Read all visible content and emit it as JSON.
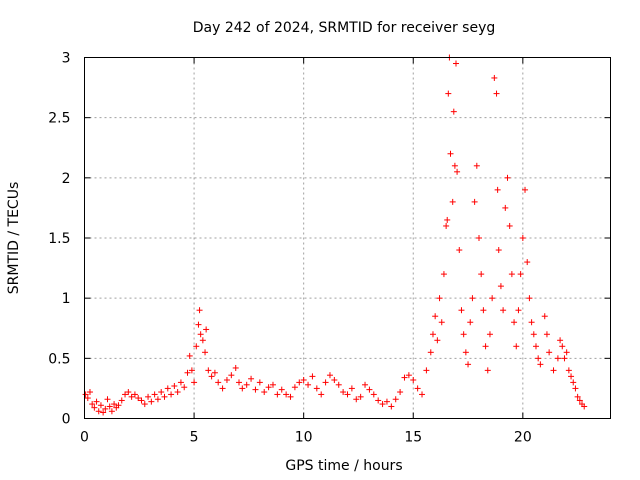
{
  "chart_data": {
    "type": "scatter",
    "title": "Day 242 of 2024, SRMTID for receiver seyg",
    "xlabel": "GPS time / hours",
    "ylabel": "SRMTID / TECUs",
    "xlim": [
      0,
      24
    ],
    "ylim": [
      0,
      3
    ],
    "xticks": [
      0,
      5,
      10,
      15,
      20
    ],
    "xtick_labels": [
      "0",
      "5",
      "10",
      "15",
      "20"
    ],
    "yticks": [
      0,
      0.5,
      1,
      1.5,
      2,
      2.5,
      3
    ],
    "ytick_labels": [
      "0",
      "0.5",
      "1",
      "1.5",
      "2",
      "2.5",
      "3"
    ],
    "grid": true,
    "marker": "+",
    "series": [
      {
        "name": "SRMTID",
        "color": "#ff0000",
        "points": [
          [
            0.05,
            0.2
          ],
          [
            0.15,
            0.17
          ],
          [
            0.25,
            0.22
          ],
          [
            0.35,
            0.12
          ],
          [
            0.45,
            0.09
          ],
          [
            0.55,
            0.14
          ],
          [
            0.65,
            0.06
          ],
          [
            0.75,
            0.11
          ],
          [
            0.85,
            0.05
          ],
          [
            0.95,
            0.08
          ],
          [
            1.05,
            0.16
          ],
          [
            1.15,
            0.1
          ],
          [
            1.25,
            0.06
          ],
          [
            1.35,
            0.12
          ],
          [
            1.45,
            0.09
          ],
          [
            1.55,
            0.11
          ],
          [
            1.7,
            0.15
          ],
          [
            1.85,
            0.2
          ],
          [
            2.0,
            0.22
          ],
          [
            2.15,
            0.18
          ],
          [
            2.3,
            0.2
          ],
          [
            2.45,
            0.17
          ],
          [
            2.6,
            0.15
          ],
          [
            2.75,
            0.12
          ],
          [
            2.9,
            0.18
          ],
          [
            3.05,
            0.14
          ],
          [
            3.2,
            0.2
          ],
          [
            3.35,
            0.16
          ],
          [
            3.5,
            0.22
          ],
          [
            3.65,
            0.18
          ],
          [
            3.8,
            0.25
          ],
          [
            3.95,
            0.2
          ],
          [
            4.1,
            0.27
          ],
          [
            4.25,
            0.22
          ],
          [
            4.4,
            0.3
          ],
          [
            4.55,
            0.26
          ],
          [
            4.7,
            0.38
          ],
          [
            4.8,
            0.52
          ],
          [
            4.9,
            0.4
          ],
          [
            5.0,
            0.3
          ],
          [
            5.1,
            0.6
          ],
          [
            5.2,
            0.78
          ],
          [
            5.25,
            0.9
          ],
          [
            5.3,
            0.7
          ],
          [
            5.4,
            0.65
          ],
          [
            5.5,
            0.55
          ],
          [
            5.55,
            0.74
          ],
          [
            5.65,
            0.4
          ],
          [
            5.8,
            0.35
          ],
          [
            5.95,
            0.38
          ],
          [
            6.1,
            0.3
          ],
          [
            6.3,
            0.25
          ],
          [
            6.5,
            0.32
          ],
          [
            6.7,
            0.36
          ],
          [
            6.9,
            0.42
          ],
          [
            7.05,
            0.3
          ],
          [
            7.2,
            0.25
          ],
          [
            7.4,
            0.28
          ],
          [
            7.6,
            0.33
          ],
          [
            7.8,
            0.24
          ],
          [
            8.0,
            0.3
          ],
          [
            8.2,
            0.22
          ],
          [
            8.4,
            0.26
          ],
          [
            8.6,
            0.28
          ],
          [
            8.8,
            0.2
          ],
          [
            9.0,
            0.24
          ],
          [
            9.2,
            0.2
          ],
          [
            9.4,
            0.18
          ],
          [
            9.6,
            0.26
          ],
          [
            9.8,
            0.3
          ],
          [
            10.0,
            0.32
          ],
          [
            10.2,
            0.28
          ],
          [
            10.4,
            0.35
          ],
          [
            10.6,
            0.25
          ],
          [
            10.8,
            0.2
          ],
          [
            11.0,
            0.3
          ],
          [
            11.2,
            0.36
          ],
          [
            11.4,
            0.32
          ],
          [
            11.6,
            0.28
          ],
          [
            11.8,
            0.22
          ],
          [
            12.0,
            0.2
          ],
          [
            12.2,
            0.25
          ],
          [
            12.4,
            0.16
          ],
          [
            12.6,
            0.18
          ],
          [
            12.8,
            0.28
          ],
          [
            13.0,
            0.24
          ],
          [
            13.2,
            0.2
          ],
          [
            13.4,
            0.15
          ],
          [
            13.6,
            0.12
          ],
          [
            13.8,
            0.14
          ],
          [
            14.0,
            0.1
          ],
          [
            14.2,
            0.16
          ],
          [
            14.4,
            0.22
          ],
          [
            14.6,
            0.34
          ],
          [
            14.8,
            0.36
          ],
          [
            15.0,
            0.32
          ],
          [
            15.2,
            0.25
          ],
          [
            15.4,
            0.2
          ],
          [
            15.6,
            0.4
          ],
          [
            15.8,
            0.55
          ],
          [
            15.9,
            0.7
          ],
          [
            16.0,
            0.85
          ],
          [
            16.1,
            0.65
          ],
          [
            16.2,
            1.0
          ],
          [
            16.3,
            0.8
          ],
          [
            16.4,
            1.2
          ],
          [
            16.5,
            1.6
          ],
          [
            16.55,
            1.65
          ],
          [
            16.6,
            2.7
          ],
          [
            16.65,
            3.0
          ],
          [
            16.7,
            2.2
          ],
          [
            16.8,
            1.8
          ],
          [
            16.85,
            2.55
          ],
          [
            16.9,
            2.1
          ],
          [
            16.95,
            2.95
          ],
          [
            17.0,
            2.05
          ],
          [
            17.1,
            1.4
          ],
          [
            17.2,
            0.9
          ],
          [
            17.3,
            0.7
          ],
          [
            17.4,
            0.55
          ],
          [
            17.5,
            0.45
          ],
          [
            17.6,
            0.8
          ],
          [
            17.7,
            1.0
          ],
          [
            17.8,
            1.8
          ],
          [
            17.9,
            2.1
          ],
          [
            18.0,
            1.5
          ],
          [
            18.1,
            1.2
          ],
          [
            18.2,
            0.9
          ],
          [
            18.3,
            0.6
          ],
          [
            18.4,
            0.4
          ],
          [
            18.5,
            0.7
          ],
          [
            18.6,
            1.0
          ],
          [
            18.7,
            2.83
          ],
          [
            18.8,
            2.7
          ],
          [
            18.85,
            1.9
          ],
          [
            18.9,
            1.4
          ],
          [
            19.0,
            1.1
          ],
          [
            19.1,
            0.9
          ],
          [
            19.2,
            1.75
          ],
          [
            19.3,
            2.0
          ],
          [
            19.4,
            1.6
          ],
          [
            19.5,
            1.2
          ],
          [
            19.6,
            0.8
          ],
          [
            19.7,
            0.6
          ],
          [
            19.8,
            0.9
          ],
          [
            19.9,
            1.2
          ],
          [
            20.0,
            1.5
          ],
          [
            20.1,
            1.9
          ],
          [
            20.2,
            1.3
          ],
          [
            20.3,
            1.0
          ],
          [
            20.4,
            0.8
          ],
          [
            20.5,
            0.7
          ],
          [
            20.6,
            0.6
          ],
          [
            20.7,
            0.5
          ],
          [
            20.8,
            0.45
          ],
          [
            21.0,
            0.85
          ],
          [
            21.1,
            0.7
          ],
          [
            21.2,
            0.55
          ],
          [
            21.4,
            0.4
          ],
          [
            21.6,
            0.5
          ],
          [
            21.7,
            0.65
          ],
          [
            21.8,
            0.6
          ],
          [
            21.9,
            0.5
          ],
          [
            22.0,
            0.55
          ],
          [
            22.1,
            0.4
          ],
          [
            22.2,
            0.35
          ],
          [
            22.3,
            0.3
          ],
          [
            22.4,
            0.25
          ],
          [
            22.5,
            0.18
          ],
          [
            22.6,
            0.15
          ],
          [
            22.7,
            0.12
          ],
          [
            22.8,
            0.1
          ]
        ]
      }
    ]
  }
}
